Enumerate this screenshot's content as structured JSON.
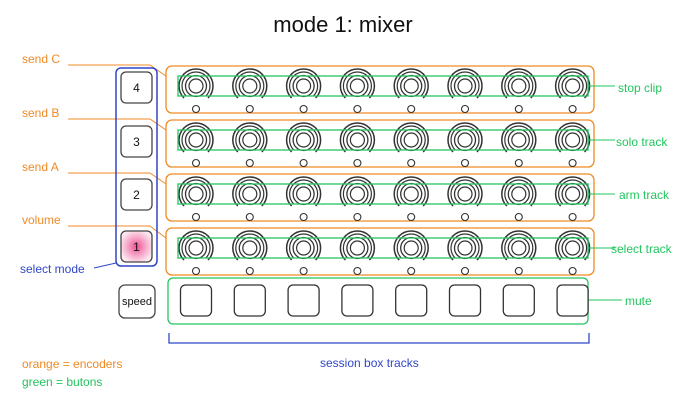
{
  "title": "mode 1: mixer",
  "colors": {
    "orange": "#f08a24",
    "green": "#22c55e",
    "blue": "#2f47c8",
    "pink": "#f0a6c6"
  },
  "rows": [
    {
      "left_label": "send C",
      "right_label": "stop clip"
    },
    {
      "left_label": "send B",
      "right_label": "solo track"
    },
    {
      "left_label": "send A",
      "right_label": "arm track"
    },
    {
      "left_label": "volume",
      "right_label": "select track"
    }
  ],
  "track_count": 8,
  "mode_buttons": [
    "4",
    "3",
    "2",
    "1"
  ],
  "active_mode": "1",
  "select_mode_label": "select mode",
  "speed_button": "speed",
  "mute_label": "mute",
  "session_label": "session box tracks",
  "legend": {
    "orange": "orange = encoders",
    "green": "green = butons"
  }
}
